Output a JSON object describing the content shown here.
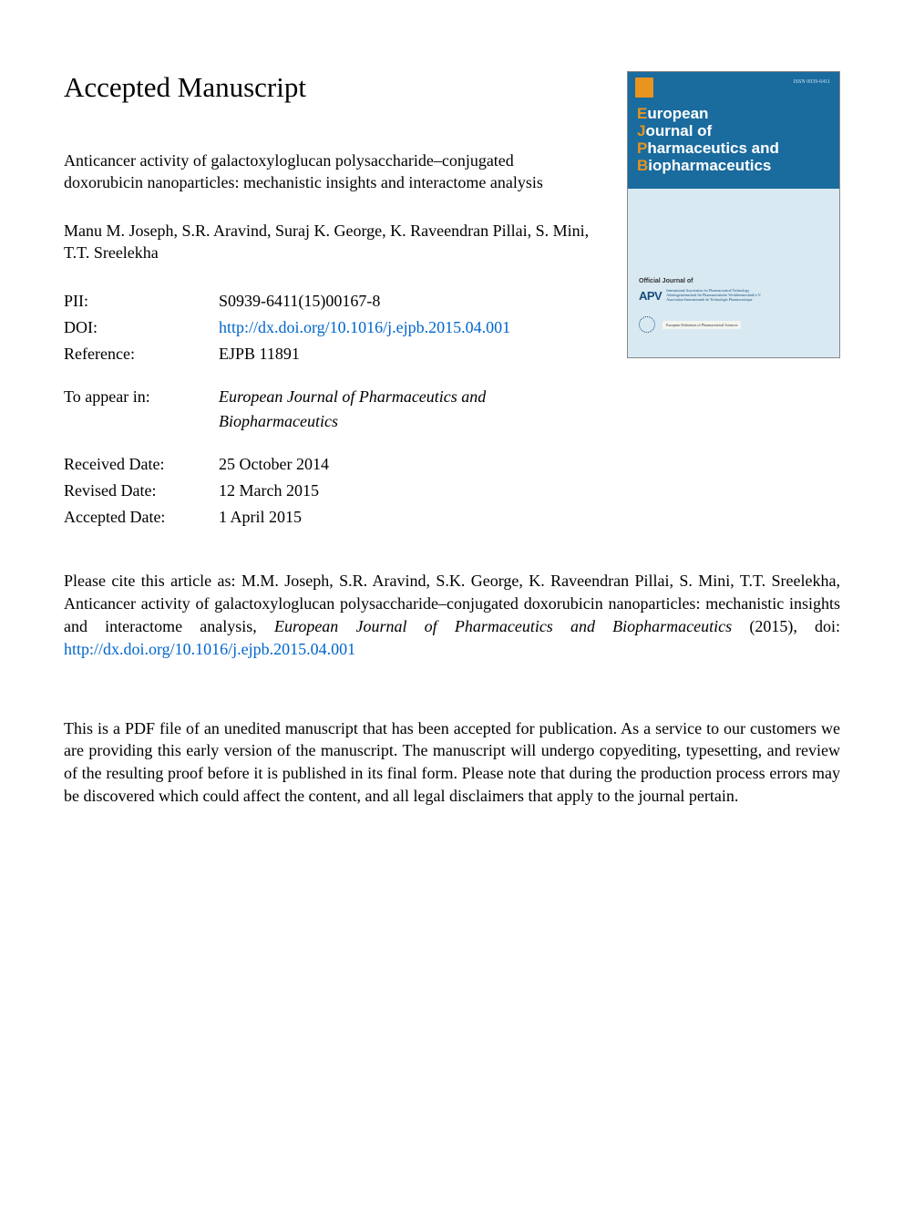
{
  "heading": "Accepted Manuscript",
  "article_title": "Anticancer activity of galactoxyloglucan polysaccharide–conjugated doxorubicin nanoparticles: mechanistic insights and interactome analysis",
  "authors": "Manu M. Joseph, S.R. Aravind, Suraj K. George, K. Raveendran Pillai, S. Mini, T.T. Sreelekha",
  "meta": {
    "pii_label": "PII:",
    "pii_value": "S0939-6411(15)00167-8",
    "doi_label": "DOI:",
    "doi_value": "http://dx.doi.org/10.1016/j.ejpb.2015.04.001",
    "ref_label": "Reference:",
    "ref_value": "EJPB 11891",
    "appear_label": "To appear in:",
    "appear_value": "European Journal of Pharmaceutics and Biopharmaceutics",
    "received_label": "Received Date:",
    "received_value": "25 October 2014",
    "revised_label": "Revised Date:",
    "revised_value": "12 March 2015",
    "accepted_label": "Accepted Date:",
    "accepted_value": "1 April 2015"
  },
  "cover": {
    "issn": "ISSN 0939-6411",
    "title_w1_cap": "E",
    "title_w1_rest": "uropean",
    "title_w2_cap": "J",
    "title_w2_rest": "ournal of",
    "title_w3_cap": "P",
    "title_w3_rest": "harmaceutics and",
    "title_w4_cap": "B",
    "title_w4_rest": "iopharmaceutics",
    "official": "Official Journal of",
    "apv": "APV",
    "apv_line1": "International Association for Pharmaceutical Technology",
    "apv_line2": "Arbeitsgemeinschaft für Pharmazeutische Verfahrenstechnik e.V.",
    "apv_line3": "Association Internationale de Technologie Pharmaceutique",
    "eu_text": "European Federation of Pharmaceutical Sciences",
    "colors": {
      "bg": "#1a6b9e",
      "body": "#d8e9f2",
      "accent": "#e8941e",
      "link": "#0066cc"
    }
  },
  "citation": {
    "prefix": "Please cite this article as: M.M. Joseph, S.R. Aravind, S.K. George, K. Raveendran Pillai, S. Mini, T.T. Sreelekha, Anticancer activity of galactoxyloglucan polysaccharide–conjugated doxorubicin nanoparticles: mechanistic insights and interactome analysis, ",
    "journal": "European Journal of Pharmaceutics and Biopharmaceutics",
    "year_doi": " (2015), doi: ",
    "link": "http://dx.doi.org/10.1016/j.ejpb.2015.04.001"
  },
  "disclaimer": "This is a PDF file of an unedited manuscript that has been accepted for publication. As a service to our customers we are providing this early version of the manuscript. The manuscript will undergo copyediting, typesetting, and review of the resulting proof before it is published in its final form. Please note that during the production process errors may be discovered which could affect the content, and all legal disclaimers that apply to the journal pertain."
}
